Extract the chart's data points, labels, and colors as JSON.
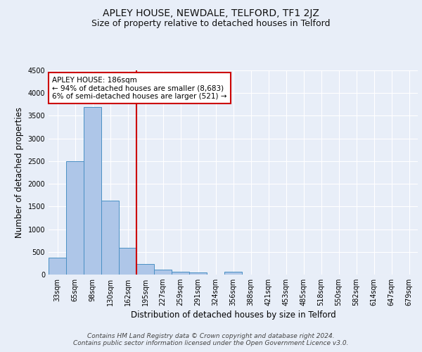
{
  "title": "APLEY HOUSE, NEWDALE, TELFORD, TF1 2JZ",
  "subtitle": "Size of property relative to detached houses in Telford",
  "xlabel": "Distribution of detached houses by size in Telford",
  "ylabel": "Number of detached properties",
  "footer_line1": "Contains HM Land Registry data © Crown copyright and database right 2024.",
  "footer_line2": "Contains public sector information licensed under the Open Government Licence v3.0.",
  "bin_labels": [
    "33sqm",
    "65sqm",
    "98sqm",
    "130sqm",
    "162sqm",
    "195sqm",
    "227sqm",
    "259sqm",
    "291sqm",
    "324sqm",
    "356sqm",
    "388sqm",
    "421sqm",
    "453sqm",
    "485sqm",
    "518sqm",
    "550sqm",
    "582sqm",
    "614sqm",
    "647sqm",
    "679sqm"
  ],
  "bar_values": [
    370,
    2500,
    3700,
    1630,
    590,
    230,
    110,
    65,
    45,
    0,
    60,
    0,
    0,
    0,
    0,
    0,
    0,
    0,
    0,
    0,
    0
  ],
  "bar_color": "#aec6e8",
  "bar_edge_color": "#4a90c4",
  "vline_x_index": 5,
  "vline_color": "#cc0000",
  "annotation_line1": "APLEY HOUSE: 186sqm",
  "annotation_line2": "← 94% of detached houses are smaller (8,683)",
  "annotation_line3": "6% of semi-detached houses are larger (521) →",
  "annotation_box_color": "#ffffff",
  "annotation_box_edgecolor": "#cc0000",
  "ylim": [
    0,
    4500
  ],
  "yticks": [
    0,
    500,
    1000,
    1500,
    2000,
    2500,
    3000,
    3500,
    4000,
    4500
  ],
  "background_color": "#e8eef8",
  "plot_bg_color": "#e8eef8",
  "grid_color": "#ffffff",
  "title_fontsize": 10,
  "subtitle_fontsize": 9,
  "axis_label_fontsize": 8.5,
  "tick_fontsize": 7,
  "footer_fontsize": 6.5,
  "annot_fontsize": 7.5
}
